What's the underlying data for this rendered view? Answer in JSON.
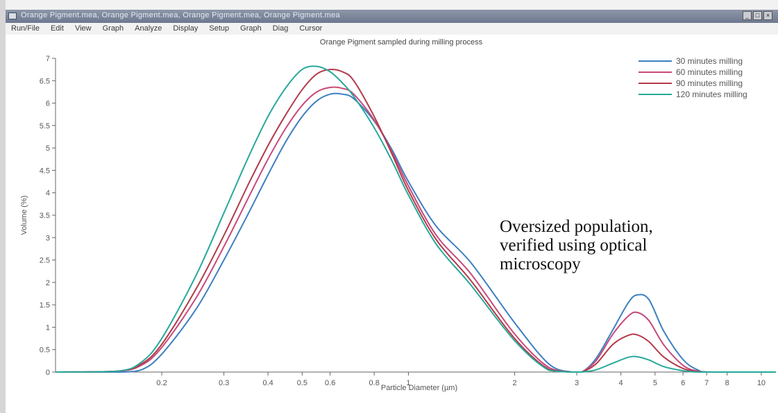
{
  "window": {
    "title": "Orange Pigment.mea, Orange Pigment.mea, Orange Pigment.mea, Orange Pigment.mea",
    "controls": [
      "_",
      "□",
      "×"
    ]
  },
  "menu": {
    "items": [
      "Run/File",
      "Edit",
      "View",
      "Graph",
      "Analyze",
      "Display",
      "Setup",
      "Graph",
      "Diag",
      "Cursor"
    ]
  },
  "chart_data": {
    "type": "line",
    "title": "Orange Pigment sampled during milling process",
    "xlabel": "Particle Diameter (µm)",
    "ylabel": "Volume (%)",
    "x_scale": "log",
    "xlim": [
      0.1,
      11
    ],
    "ylim": [
      0,
      7
    ],
    "x_ticks": [
      {
        "value": 0.2,
        "label": "0.2"
      },
      {
        "value": 0.3,
        "label": "0.3"
      },
      {
        "value": 0.4,
        "label": "0.4"
      },
      {
        "value": 0.5,
        "label": "0.5"
      },
      {
        "value": 0.6,
        "label": "0.6"
      },
      {
        "value": 0.8,
        "label": "0.8"
      },
      {
        "value": 1,
        "label": "1"
      },
      {
        "value": 2,
        "label": "2"
      },
      {
        "value": 3,
        "label": "3"
      },
      {
        "value": 4,
        "label": "4"
      },
      {
        "value": 5,
        "label": "5"
      },
      {
        "value": 6,
        "label": "6"
      },
      {
        "value": 7,
        "label": "7"
      },
      {
        "value": 8,
        "label": "8"
      },
      {
        "value": 10,
        "label": "10"
      }
    ],
    "y_ticks": [
      {
        "value": 0,
        "label": "0"
      },
      {
        "value": 0.5,
        "label": "0.5"
      },
      {
        "value": 1,
        "label": "1"
      },
      {
        "value": 1.5,
        "label": "1.5"
      },
      {
        "value": 2,
        "label": "2"
      },
      {
        "value": 2.5,
        "label": "2.5"
      },
      {
        "value": 3,
        "label": "3"
      },
      {
        "value": 3.5,
        "label": "3.5"
      },
      {
        "value": 4,
        "label": "4"
      },
      {
        "value": 4.5,
        "label": "4.5"
      },
      {
        "value": 5,
        "label": "5"
      },
      {
        "value": 5.5,
        "label": "5.5"
      },
      {
        "value": 6,
        "label": "6"
      },
      {
        "value": 6.5,
        "label": "6.5"
      },
      {
        "value": 7,
        "label": "7"
      }
    ],
    "legend_position": "top-right",
    "grid": false,
    "series": [
      {
        "name": "30 minutes milling",
        "color": "#3d7fc0",
        "points": [
          [
            0.1,
            0
          ],
          [
            0.15,
            0
          ],
          [
            0.175,
            0.05
          ],
          [
            0.2,
            0.4
          ],
          [
            0.25,
            1.4
          ],
          [
            0.3,
            2.5
          ],
          [
            0.35,
            3.5
          ],
          [
            0.4,
            4.4
          ],
          [
            0.45,
            5.15
          ],
          [
            0.5,
            5.7
          ],
          [
            0.55,
            6.05
          ],
          [
            0.6,
            6.2
          ],
          [
            0.65,
            6.2
          ],
          [
            0.7,
            6.1
          ],
          [
            0.8,
            5.6
          ],
          [
            0.9,
            4.95
          ],
          [
            1.0,
            4.25
          ],
          [
            1.2,
            3.25
          ],
          [
            1.5,
            2.45
          ],
          [
            2.0,
            1.1
          ],
          [
            2.5,
            0.18
          ],
          [
            2.9,
            0
          ],
          [
            3.1,
            0
          ],
          [
            3.4,
            0.3
          ],
          [
            3.8,
            0.95
          ],
          [
            4.2,
            1.55
          ],
          [
            4.45,
            1.72
          ],
          [
            4.8,
            1.62
          ],
          [
            5.3,
            0.9
          ],
          [
            6.0,
            0.28
          ],
          [
            6.6,
            0.05
          ],
          [
            7.2,
            0
          ],
          [
            11,
            0
          ]
        ]
      },
      {
        "name": "60 minutes milling",
        "color": "#c6497a",
        "points": [
          [
            0.1,
            0
          ],
          [
            0.15,
            0.02
          ],
          [
            0.175,
            0.15
          ],
          [
            0.2,
            0.55
          ],
          [
            0.25,
            1.65
          ],
          [
            0.3,
            2.8
          ],
          [
            0.35,
            3.85
          ],
          [
            0.4,
            4.75
          ],
          [
            0.45,
            5.45
          ],
          [
            0.5,
            5.95
          ],
          [
            0.55,
            6.25
          ],
          [
            0.6,
            6.35
          ],
          [
            0.65,
            6.33
          ],
          [
            0.7,
            6.2
          ],
          [
            0.8,
            5.62
          ],
          [
            0.9,
            4.9
          ],
          [
            1.0,
            4.15
          ],
          [
            1.2,
            3.05
          ],
          [
            1.5,
            2.2
          ],
          [
            2.0,
            0.85
          ],
          [
            2.5,
            0.1
          ],
          [
            2.9,
            0
          ],
          [
            3.1,
            0
          ],
          [
            3.4,
            0.25
          ],
          [
            3.8,
            0.85
          ],
          [
            4.2,
            1.25
          ],
          [
            4.45,
            1.33
          ],
          [
            4.8,
            1.15
          ],
          [
            5.3,
            0.6
          ],
          [
            6.0,
            0.15
          ],
          [
            6.6,
            0.02
          ],
          [
            7.2,
            0
          ],
          [
            11,
            0
          ]
        ]
      },
      {
        "name": "90 minutes milling",
        "color": "#b23a48",
        "points": [
          [
            0.1,
            0
          ],
          [
            0.15,
            0.02
          ],
          [
            0.175,
            0.18
          ],
          [
            0.2,
            0.62
          ],
          [
            0.25,
            1.85
          ],
          [
            0.3,
            3.05
          ],
          [
            0.35,
            4.15
          ],
          [
            0.4,
            5.05
          ],
          [
            0.45,
            5.75
          ],
          [
            0.5,
            6.3
          ],
          [
            0.55,
            6.65
          ],
          [
            0.6,
            6.75
          ],
          [
            0.65,
            6.7
          ],
          [
            0.7,
            6.5
          ],
          [
            0.8,
            5.7
          ],
          [
            0.9,
            4.85
          ],
          [
            1.0,
            4.05
          ],
          [
            1.2,
            2.95
          ],
          [
            1.5,
            2.05
          ],
          [
            2.0,
            0.75
          ],
          [
            2.5,
            0.06
          ],
          [
            2.9,
            0
          ],
          [
            3.1,
            0
          ],
          [
            3.4,
            0.18
          ],
          [
            3.8,
            0.62
          ],
          [
            4.2,
            0.82
          ],
          [
            4.45,
            0.83
          ],
          [
            4.8,
            0.68
          ],
          [
            5.3,
            0.33
          ],
          [
            6.0,
            0.08
          ],
          [
            6.6,
            0.01
          ],
          [
            7.2,
            0
          ],
          [
            11,
            0
          ]
        ]
      },
      {
        "name": "120 minutes milling",
        "color": "#27a89a",
        "points": [
          [
            0.1,
            0
          ],
          [
            0.15,
            0.02
          ],
          [
            0.175,
            0.22
          ],
          [
            0.2,
            0.75
          ],
          [
            0.25,
            2.15
          ],
          [
            0.3,
            3.55
          ],
          [
            0.35,
            4.75
          ],
          [
            0.4,
            5.7
          ],
          [
            0.45,
            6.35
          ],
          [
            0.5,
            6.75
          ],
          [
            0.55,
            6.82
          ],
          [
            0.6,
            6.7
          ],
          [
            0.65,
            6.45
          ],
          [
            0.7,
            6.15
          ],
          [
            0.8,
            5.45
          ],
          [
            0.9,
            4.7
          ],
          [
            1.0,
            3.95
          ],
          [
            1.2,
            2.85
          ],
          [
            1.5,
            1.95
          ],
          [
            2.0,
            0.7
          ],
          [
            2.5,
            0.04
          ],
          [
            2.9,
            0
          ],
          [
            3.1,
            0
          ],
          [
            3.4,
            0.05
          ],
          [
            3.8,
            0.2
          ],
          [
            4.2,
            0.33
          ],
          [
            4.45,
            0.34
          ],
          [
            4.8,
            0.27
          ],
          [
            5.3,
            0.12
          ],
          [
            6.0,
            0.03
          ],
          [
            6.6,
            0
          ],
          [
            7.2,
            0
          ],
          [
            11,
            0
          ]
        ]
      }
    ],
    "annotation": {
      "lines": [
        "Oversized population,",
        "verified using optical",
        "microscopy"
      ]
    }
  }
}
